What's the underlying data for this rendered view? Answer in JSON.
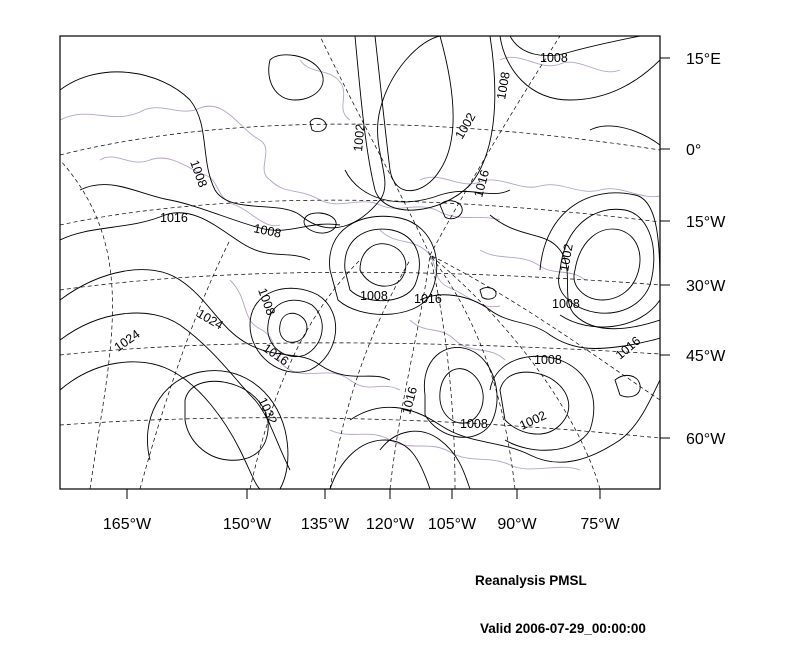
{
  "caption": {
    "title": "Reanalysis PMSL",
    "valid": "Valid 2006-07-29_00:00:00"
  },
  "map": {
    "bottom_axis_labels": [
      "165°W",
      "150°W",
      "135°W",
      "120°W",
      "105°W",
      "90°W",
      "75°W"
    ],
    "right_axis_labels": [
      "15°E",
      "0°",
      "15°W",
      "30°W",
      "45°W",
      "60°W"
    ],
    "contour_labels": [
      "1008",
      "1002",
      "1002",
      "1008",
      "1008",
      "1016",
      "1016",
      "1008",
      "1002",
      "1008",
      "1016",
      "1008",
      "1008",
      "1024",
      "1024",
      "1016",
      "1032",
      "1016",
      "1008",
      "1002",
      "1008",
      "1016"
    ],
    "colors": {
      "contour": "#000000",
      "coastline": "#b8a0cc",
      "graticule": "#000000"
    }
  }
}
